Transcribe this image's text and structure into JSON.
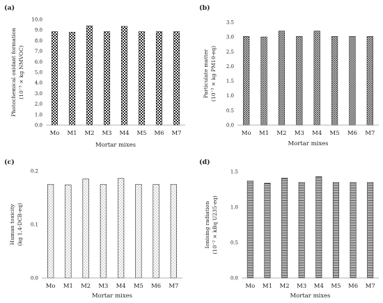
{
  "chart_data": [
    {
      "panel_label": "(a)",
      "type": "bar",
      "xlabel": "Mortar mixes",
      "ylabel": [
        "Photochemical oxidant formation",
        "(10⁻³ × kg NMVOC)"
      ],
      "ylim": [
        0,
        10
      ],
      "yticks": [
        "0.0",
        "1.0",
        "2.0",
        "3.0",
        "4.0",
        "5.0",
        "6.0",
        "7.0",
        "8.0",
        "9.0",
        "10.0"
      ],
      "categories": [
        "Mo",
        "M1",
        "M2",
        "M3",
        "M4",
        "M5",
        "M6",
        "M7"
      ],
      "values": [
        8.85,
        8.8,
        9.4,
        8.85,
        9.35,
        8.85,
        8.85,
        8.85
      ],
      "pattern": "checker"
    },
    {
      "panel_label": "(b)",
      "type": "bar",
      "xlabel": "Mortar mixes",
      "ylabel": [
        "Particulate matter",
        "(10⁻³ × kg PM10-eq)"
      ],
      "ylim": [
        0,
        3.5
      ],
      "yticks": [
        "0.0",
        "0.5",
        "1.0",
        "1.5",
        "2.0",
        "2.5",
        "3.0",
        "3.5"
      ],
      "categories": [
        "Mo",
        "M1",
        "M2",
        "M3",
        "M4",
        "M5",
        "M6",
        "M7"
      ],
      "values": [
        3.02,
        3.0,
        3.2,
        3.02,
        3.2,
        3.02,
        3.02,
        3.02
      ],
      "pattern": "crosshatch"
    },
    {
      "panel_label": "(c)",
      "type": "bar",
      "xlabel": "Mortar mixes",
      "ylabel": [
        "Human toxicity",
        "(kg 1,4-DCB-eq)"
      ],
      "ylim": [
        0,
        0.2
      ],
      "yticks": [
        "0.0",
        "0.1",
        "0.2"
      ],
      "categories": [
        "Mo",
        "M1",
        "M2",
        "M3",
        "M4",
        "M5",
        "M6",
        "M7"
      ],
      "values": [
        0.175,
        0.174,
        0.185,
        0.175,
        0.186,
        0.175,
        0.175,
        0.175
      ],
      "pattern": "dots"
    },
    {
      "panel_label": "(d)",
      "type": "bar",
      "xlabel": "Mortar mixes",
      "ylabel": [
        "Ionising radiation",
        "(10⁻² × kBq U235-eq)"
      ],
      "ylim": [
        0,
        1.5
      ],
      "yticks": [
        "0.0",
        "0.5",
        "1.0",
        "1.5"
      ],
      "categories": [
        "Mo",
        "M1",
        "M2",
        "M3",
        "M4",
        "M5",
        "M6",
        "M7"
      ],
      "values": [
        1.37,
        1.34,
        1.41,
        1.35,
        1.43,
        1.35,
        1.35,
        1.35
      ],
      "pattern": "hlines"
    }
  ]
}
